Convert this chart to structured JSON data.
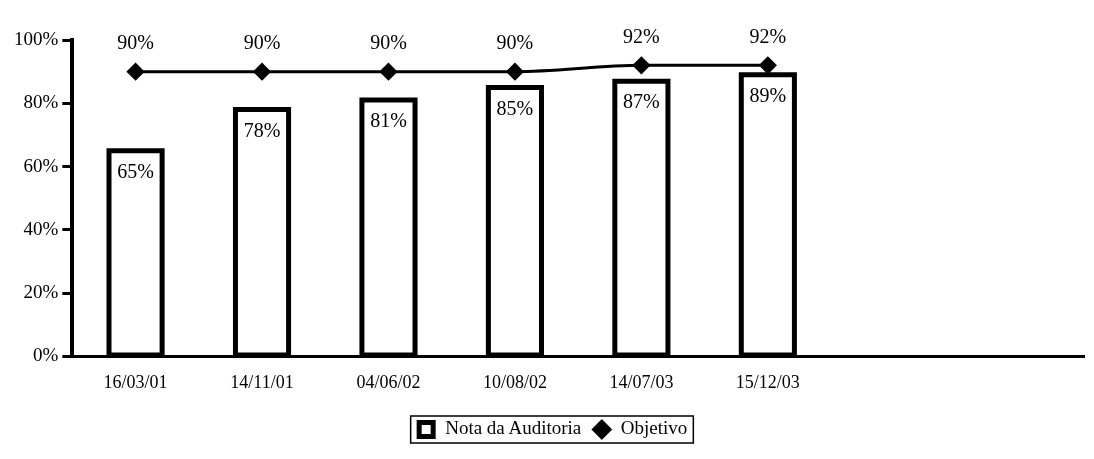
{
  "chart_data": {
    "type": "bar",
    "categories": [
      "16/03/01",
      "14/11/01",
      "04/06/02",
      "10/08/02",
      "14/07/03",
      "15/12/03",
      null,
      null
    ],
    "series": [
      {
        "name": "Nota da Auditoria",
        "color": "#000000",
        "values": [
          65,
          78,
          81,
          85,
          87,
          89,
          null,
          null
        ],
        "value_labels": [
          "65%",
          "78%",
          "81%",
          "85%",
          "87%",
          "89%",
          null,
          null
        ]
      },
      {
        "name": "Objetivo",
        "type": "line",
        "color": "#000000",
        "marker": "diamond",
        "line_style": "solid",
        "values": [
          90,
          90,
          90,
          90,
          92,
          92,
          null,
          null
        ],
        "value_labels": [
          "90%",
          "90%",
          "90%",
          "90%",
          "92%",
          "92%",
          null,
          null
        ]
      }
    ],
    "ylim": [
      0,
      100
    ],
    "yticks": [
      {
        "value": 0,
        "label": "0%"
      },
      {
        "value": 20,
        "label": "20%"
      },
      {
        "value": 40,
        "label": "40%"
      },
      {
        "value": 60,
        "label": "60%"
      },
      {
        "value": 80,
        "label": "80%"
      },
      {
        "value": 100,
        "label": "100%"
      }
    ],
    "grid": false,
    "legend": "bottom"
  }
}
